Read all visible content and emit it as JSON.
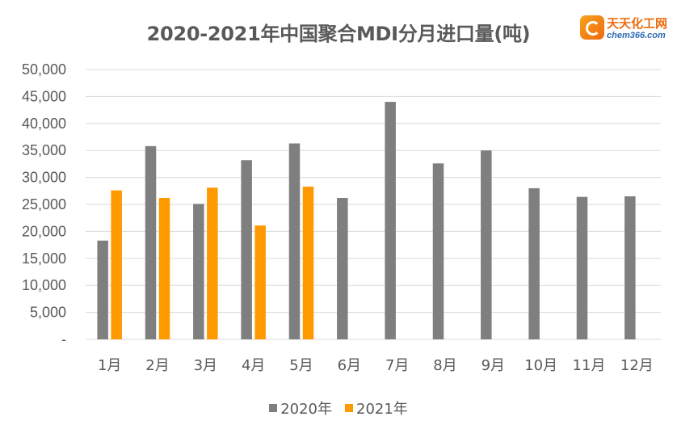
{
  "logo": {
    "name": "天天化工网",
    "url": "chem366.com"
  },
  "colors": {
    "series_2020": "#7f7f7f",
    "series_2021": "#ff9900",
    "grid": "#d9d9d9",
    "text": "#595959"
  },
  "chart_data": {
    "type": "bar",
    "title": "2020-2021年中国聚合MDI分月进口量(吨)",
    "categories": [
      "1月",
      "2月",
      "3月",
      "4月",
      "5月",
      "6月",
      "7月",
      "8月",
      "9月",
      "10月",
      "11月",
      "12月"
    ],
    "series": [
      {
        "name": "2020年",
        "values": [
          18300,
          35800,
          25100,
          33200,
          36300,
          26200,
          44000,
          32600,
          35000,
          28000,
          26400,
          26500
        ]
      },
      {
        "name": "2021年",
        "values": [
          27600,
          26200,
          28100,
          21100,
          28300,
          null,
          null,
          null,
          null,
          null,
          null,
          null
        ]
      }
    ],
    "y_ticks": [
      "-",
      "5,000",
      "10,000",
      "15,000",
      "20,000",
      "25,000",
      "30,000",
      "35,000",
      "40,000",
      "45,000",
      "50,000"
    ],
    "ylim": [
      0,
      50000
    ],
    "grid": true,
    "legend_position": "bottom"
  }
}
